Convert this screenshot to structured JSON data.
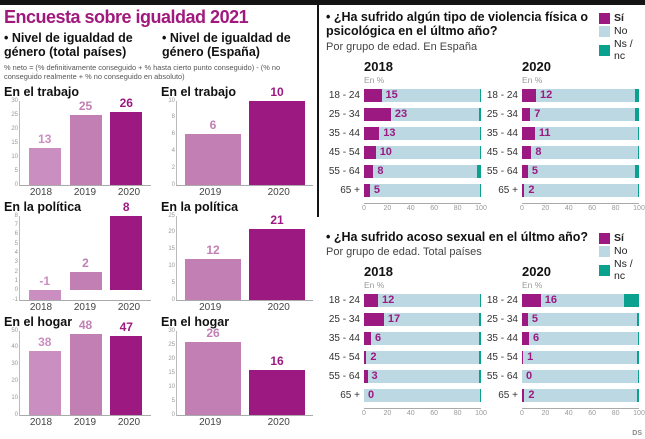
{
  "title": "Encuesta sobre igualdad 2021",
  "credit": "DS",
  "colors": {
    "magenta": "#9b1980",
    "pink2018": "#cb8ec0",
    "pink2019": "#c17fb3",
    "blue_no": "#bcd8e2",
    "teal_ns": "#0aa28f",
    "title": "#a1197d"
  },
  "left_section": {
    "col1_title": "• Nivel de igualdad de género (total países)",
    "col2_title": "• Nivel de igualdad de género (España)",
    "note": "% neto = (% definitivamente conseguido + % hasta cierto punto conseguido) - (% no conseguido realmente + % no conseguido en absoluto)"
  },
  "right_section": {
    "legend": {
      "si": "Sí",
      "no": "No",
      "ns": "Ns / nc"
    },
    "q1": {
      "question": "• ¿Ha sufrido algún tipo de violencia física o psicológica en el últmo año?",
      "subtitle": "Por grupo de edad. En España"
    },
    "q2": {
      "question": "• ¿Ha sufrido acoso sexual en el últmo año?",
      "subtitle": "Por grupo de edad. Total países"
    }
  },
  "chart_data": [
    {
      "id": "v1",
      "type": "bar",
      "title": "En el trabajo",
      "group": "total países",
      "categories": [
        "2018",
        "2019",
        "2020"
      ],
      "values": [
        13,
        25,
        26
      ],
      "ylim": [
        0,
        30
      ],
      "yticks": [
        0,
        5,
        10,
        15,
        20,
        25,
        30
      ]
    },
    {
      "id": "v2",
      "type": "bar",
      "title": "En la política",
      "group": "total países",
      "categories": [
        "2018",
        "2019",
        "2020"
      ],
      "values": [
        -1,
        2,
        8
      ],
      "ylim": [
        -1,
        8
      ],
      "yticks": [
        -1,
        0,
        1,
        2,
        3,
        4,
        5,
        6,
        7,
        8
      ]
    },
    {
      "id": "v3",
      "type": "bar",
      "title": "En el hogar",
      "group": "total países",
      "categories": [
        "2018",
        "2019",
        "2020"
      ],
      "values": [
        38,
        48,
        47
      ],
      "ylim": [
        0,
        50
      ],
      "yticks": [
        0,
        10,
        20,
        30,
        40,
        50
      ]
    },
    {
      "id": "v4",
      "type": "bar",
      "title": "En el trabajo",
      "group": "España",
      "categories": [
        "2019",
        "2020"
      ],
      "values": [
        6,
        10
      ],
      "ylim": [
        0,
        10
      ],
      "yticks": [
        0,
        2,
        4,
        6,
        8,
        10
      ]
    },
    {
      "id": "v5",
      "type": "bar",
      "title": "En la política",
      "group": "España",
      "categories": [
        "2019",
        "2020"
      ],
      "values": [
        12,
        21
      ],
      "ylim": [
        0,
        25
      ],
      "yticks": [
        0,
        5,
        10,
        15,
        20,
        25
      ]
    },
    {
      "id": "v6",
      "type": "bar",
      "title": "En el hogar",
      "group": "España",
      "categories": [
        "2019",
        "2020"
      ],
      "values": [
        26,
        16
      ],
      "ylim": [
        0,
        30
      ],
      "yticks": [
        0,
        5,
        10,
        15,
        20,
        25,
        30
      ]
    },
    {
      "id": "h1",
      "type": "stacked_hbar",
      "title": "2018",
      "unit": "En %",
      "question": "violencia física o psicológica",
      "scope": "En España",
      "categories": [
        "18 - 24",
        "25 - 34",
        "35 - 44",
        "45 - 54",
        "55 - 64",
        "65 +"
      ],
      "series": [
        {
          "name": "Sí",
          "values": [
            15,
            23,
            13,
            10,
            8,
            5
          ]
        },
        {
          "name": "No",
          "values": [
            84,
            75,
            86,
            89,
            89,
            94
          ]
        },
        {
          "name": "Ns / nc",
          "values": [
            1,
            2,
            1,
            1,
            3,
            1
          ]
        }
      ],
      "xticks": [
        0,
        20,
        40,
        60,
        80,
        100
      ],
      "xlim": [
        0,
        100
      ]
    },
    {
      "id": "h2",
      "type": "stacked_hbar",
      "title": "2020",
      "unit": "En %",
      "question": "violencia física o psicológica",
      "scope": "En España",
      "categories": [
        "18 - 24",
        "25 - 34",
        "35 - 44",
        "45 - 54",
        "55 - 64",
        "65 +"
      ],
      "series": [
        {
          "name": "Sí",
          "values": [
            12,
            7,
            11,
            8,
            5,
            2
          ]
        },
        {
          "name": "No",
          "values": [
            85,
            90,
            88,
            91,
            92,
            97
          ]
        },
        {
          "name": "Ns / nc",
          "values": [
            3,
            3,
            1,
            1,
            3,
            1
          ]
        }
      ],
      "xticks": [
        0,
        20,
        40,
        60,
        80,
        100
      ],
      "xlim": [
        0,
        100
      ]
    },
    {
      "id": "h3",
      "type": "stacked_hbar",
      "title": "2018",
      "unit": "En %",
      "question": "acoso sexual",
      "scope": "Total países",
      "categories": [
        "18 - 24",
        "25 - 34",
        "35 - 44",
        "45 - 54",
        "55 - 64",
        "65 +"
      ],
      "series": [
        {
          "name": "Sí",
          "values": [
            12,
            17,
            6,
            2,
            3,
            0
          ]
        },
        {
          "name": "No",
          "values": [
            87,
            81,
            92,
            96,
            95,
            99
          ]
        },
        {
          "name": "Ns / nc",
          "values": [
            1,
            2,
            2,
            2,
            2,
            1
          ]
        }
      ],
      "xticks": [
        0,
        20,
        40,
        60,
        80,
        100
      ],
      "xlim": [
        0,
        100
      ]
    },
    {
      "id": "h4",
      "type": "stacked_hbar",
      "title": "2020",
      "unit": "En %",
      "question": "acoso sexual",
      "scope": "Total países",
      "categories": [
        "18 - 24",
        "25 - 34",
        "35 - 44",
        "45 - 54",
        "55 - 64",
        "65 +"
      ],
      "series": [
        {
          "name": "Sí",
          "values": [
            16,
            5,
            6,
            1,
            0,
            2
          ]
        },
        {
          "name": "No",
          "values": [
            71,
            93,
            93,
            97,
            99,
            96
          ]
        },
        {
          "name": "Ns / nc",
          "values": [
            13,
            2,
            1,
            2,
            1,
            2
          ]
        }
      ],
      "xticks": [
        0,
        20,
        40,
        60,
        80,
        100
      ],
      "xlim": [
        0,
        100
      ]
    }
  ]
}
